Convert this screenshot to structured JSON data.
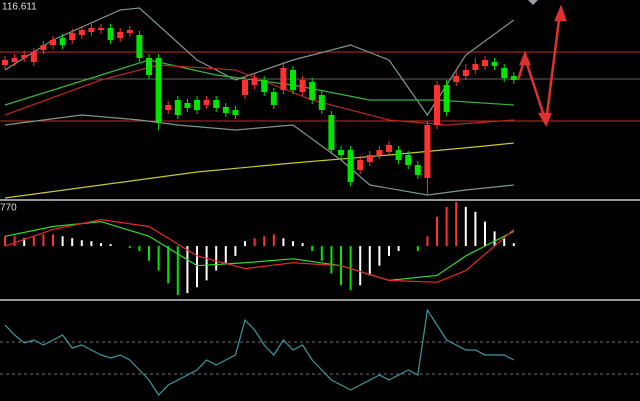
{
  "chart_data": [
    {
      "type": "candlestick",
      "max_label": 116.611,
      "ylim": [
        114.8,
        116.8
      ],
      "up_color": "#ff3232",
      "down_color": "#00e600",
      "open": [
        116.15,
        116.18,
        116.22,
        116.18,
        116.3,
        116.35,
        116.42,
        116.4,
        116.45,
        116.48,
        116.5,
        116.52,
        116.42,
        116.47,
        116.45,
        116.22,
        116.22,
        115.7,
        115.8,
        115.77,
        115.8,
        115.75,
        115.8,
        115.73,
        115.7,
        115.85,
        115.95,
        116.0,
        115.88,
        115.9,
        116.1,
        115.88,
        115.98,
        115.85,
        115.65,
        115.3,
        115.3,
        115.1,
        115.18,
        115.25,
        115.28,
        115.3,
        115.25,
        115.15,
        115.02,
        115.55,
        115.95,
        115.98,
        116.04,
        116.1,
        116.14,
        116.18,
        116.12,
        116.04
      ],
      "high": [
        116.24,
        116.26,
        116.29,
        116.32,
        116.39,
        116.44,
        116.46,
        116.51,
        116.54,
        116.56,
        116.56,
        116.56,
        116.52,
        116.54,
        116.49,
        116.26,
        116.26,
        115.79,
        115.84,
        115.81,
        115.84,
        115.84,
        115.84,
        115.77,
        115.74,
        116.04,
        116.06,
        116.04,
        115.92,
        116.18,
        116.14,
        116.04,
        116.02,
        115.89,
        115.69,
        115.34,
        115.34,
        115.24,
        115.29,
        115.34,
        115.39,
        115.34,
        115.29,
        115.19,
        115.59,
        115.99,
        116.0,
        116.1,
        116.16,
        116.22,
        116.24,
        116.22,
        116.16,
        116.08
      ],
      "low": [
        116.11,
        116.14,
        116.18,
        116.14,
        116.26,
        116.31,
        116.31,
        116.36,
        116.41,
        116.44,
        116.46,
        116.36,
        116.38,
        116.43,
        116.18,
        116.01,
        115.5,
        115.66,
        115.61,
        115.68,
        115.66,
        115.71,
        115.68,
        115.63,
        115.61,
        115.81,
        115.91,
        115.84,
        115.71,
        115.86,
        115.86,
        115.84,
        115.76,
        115.66,
        115.26,
        115.21,
        114.94,
        115.06,
        115.14,
        115.21,
        115.24,
        115.16,
        115.11,
        115.01,
        114.85,
        115.51,
        115.64,
        115.94,
        116.0,
        116.06,
        116.1,
        116.1,
        115.98,
        115.96
      ],
      "close": [
        116.2,
        116.22,
        116.25,
        116.28,
        116.35,
        116.4,
        116.35,
        116.47,
        116.5,
        116.52,
        116.52,
        116.4,
        116.48,
        116.5,
        116.22,
        116.05,
        115.58,
        115.75,
        115.65,
        115.72,
        115.7,
        115.8,
        115.72,
        115.67,
        115.65,
        116.0,
        116.02,
        115.88,
        115.75,
        116.12,
        115.9,
        116.0,
        115.8,
        115.7,
        115.3,
        115.25,
        114.98,
        115.2,
        115.25,
        115.3,
        115.35,
        115.2,
        115.15,
        115.05,
        115.55,
        115.95,
        115.68,
        116.04,
        116.1,
        116.16,
        116.2,
        116.14,
        116.02,
        116.0
      ],
      "hlines": [
        {
          "value": 116.28,
          "color": "#c82828"
        },
        {
          "value": 115.59,
          "color": "#c82828"
        },
        {
          "value": 116.01,
          "color": "#606060"
        }
      ],
      "overlays": [
        {
          "color": "#c8c832",
          "x": [
            0,
            10,
            20,
            30,
            40,
            50,
            53
          ],
          "values": [
            114.82,
            114.95,
            115.08,
            115.17,
            115.25,
            115.34,
            115.37
          ]
        },
        {
          "color": "#7a9a8a",
          "x": [
            0,
            5,
            12,
            14,
            20,
            24,
            30,
            36,
            40,
            44,
            48,
            53
          ],
          "values": [
            116.1,
            116.4,
            116.7,
            116.72,
            116.2,
            116.0,
            116.2,
            116.35,
            116.2,
            115.65,
            116.25,
            116.6
          ]
        },
        {
          "color": "#7a9a8a",
          "x": [
            0,
            8,
            14,
            18,
            24,
            30,
            35,
            38,
            44,
            48,
            53
          ],
          "values": [
            115.55,
            115.65,
            115.6,
            115.55,
            115.5,
            115.55,
            115.2,
            114.95,
            114.85,
            114.9,
            114.95
          ]
        },
        {
          "color": "#3cb43c",
          "x": [
            0,
            10,
            15,
            22,
            30,
            38,
            45,
            53
          ],
          "values": [
            115.75,
            116.05,
            116.2,
            116.05,
            115.95,
            115.8,
            115.8,
            115.75
          ]
        },
        {
          "color": "#b42828",
          "x": [
            0,
            10,
            16,
            24,
            32,
            40,
            46,
            53
          ],
          "values": [
            115.65,
            116.0,
            116.15,
            116.1,
            115.8,
            115.6,
            115.55,
            115.6
          ]
        }
      ]
    },
    {
      "type": "macd",
      "label": "770",
      "ylim": [
        -0.053,
        0.045
      ],
      "up_color": "#ff3232",
      "down_color": "#00e600",
      "fade_color": "#ffffff",
      "values": [
        0.01,
        0.01,
        0.008,
        0.01,
        0.012,
        0.012,
        0.01,
        0.008,
        0.006,
        0.005,
        0.003,
        0.002,
        0,
        -0.002,
        -0.005,
        -0.015,
        -0.025,
        -0.038,
        -0.05,
        -0.048,
        -0.042,
        -0.035,
        -0.025,
        -0.018,
        -0.01,
        0.005,
        0.008,
        0.01,
        0.012,
        0.008,
        0.005,
        0.003,
        -0.005,
        -0.015,
        -0.028,
        -0.04,
        -0.045,
        -0.04,
        -0.03,
        -0.02,
        -0.01,
        -0.005,
        0,
        -0.005,
        0.01,
        0.03,
        0.04,
        0.045,
        0.04,
        0.035,
        0.025,
        0.015,
        0.008,
        0.003
      ],
      "lines": [
        {
          "color": "#32dc32",
          "x": [
            0,
            5,
            10,
            15,
            20,
            25,
            30,
            35,
            40,
            45,
            48,
            53
          ],
          "values": [
            0.01,
            0.02,
            0.025,
            0.01,
            -0.02,
            -0.017,
            -0.013,
            -0.02,
            -0.035,
            -0.03,
            -0.01,
            0.015
          ]
        },
        {
          "color": "#e62828",
          "x": [
            0,
            5,
            10,
            15,
            20,
            25,
            30,
            35,
            40,
            45,
            48,
            53
          ],
          "values": [
            0,
            0.017,
            0.027,
            0.02,
            -0.01,
            -0.023,
            -0.017,
            -0.02,
            -0.035,
            -0.037,
            -0.025,
            0.017
          ]
        }
      ]
    },
    {
      "type": "line",
      "ylim": [
        0,
        99
      ],
      "color": "#3c9aa0",
      "values": [
        76,
        66,
        58,
        61,
        56,
        61,
        66,
        53,
        56,
        51,
        46,
        43,
        46,
        41,
        31,
        21,
        6,
        16,
        21,
        26,
        31,
        41,
        36,
        41,
        46,
        81,
        71,
        56,
        46,
        61,
        51,
        56,
        41,
        31,
        21,
        16,
        11,
        16,
        21,
        26,
        21,
        26,
        31,
        26,
        91,
        76,
        61,
        56,
        51,
        51,
        46,
        46,
        46,
        41
      ],
      "hlines": [
        {
          "value": 59,
          "color": "#707070"
        },
        {
          "value": 27,
          "color": "#707070"
        }
      ]
    }
  ]
}
